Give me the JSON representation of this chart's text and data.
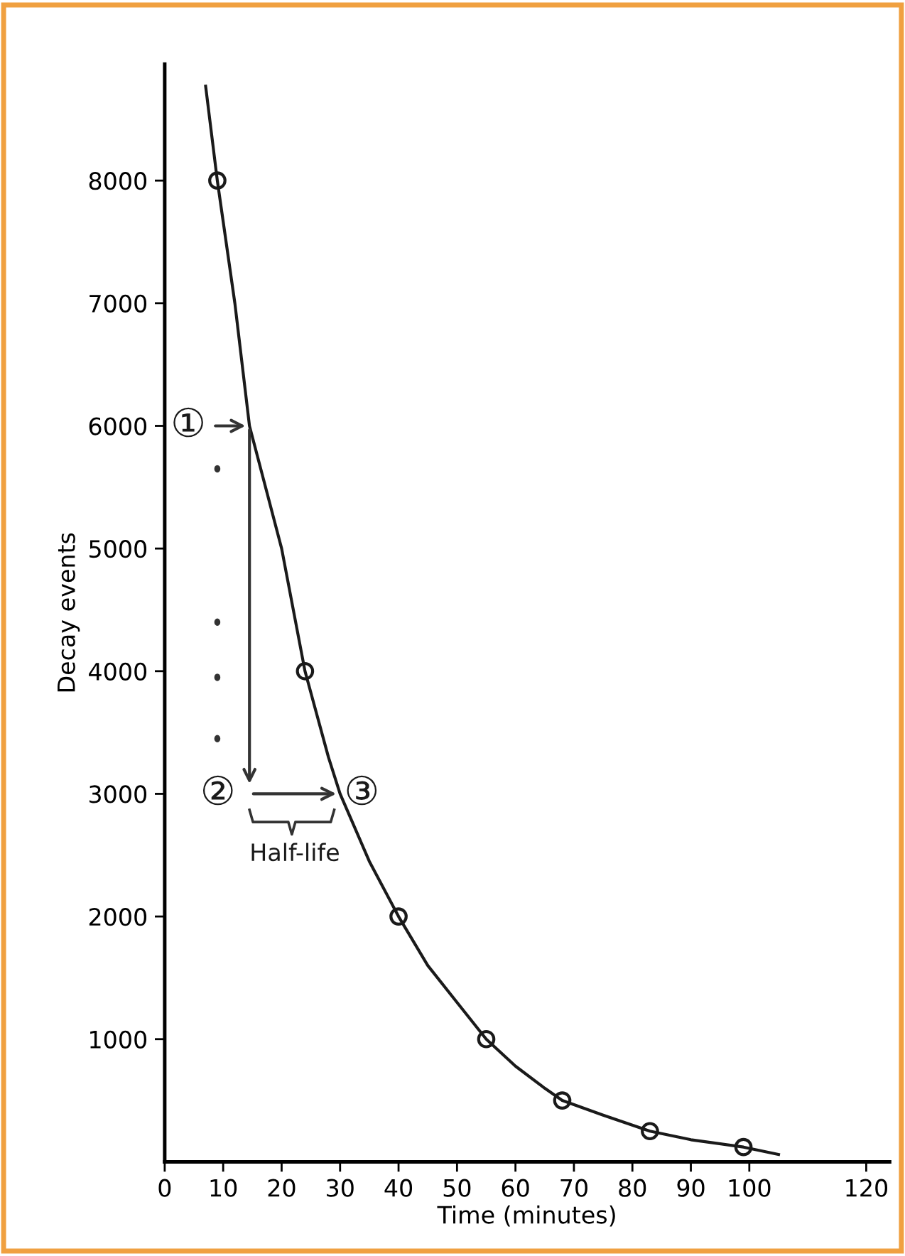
{
  "chart_data": {
    "type": "line",
    "xlabel": "Time (minutes)",
    "ylabel": "Decay events",
    "xlim": [
      0,
      124
    ],
    "ylim": [
      0,
      8950
    ],
    "xticks": [
      0,
      10,
      20,
      30,
      40,
      50,
      60,
      70,
      80,
      90,
      100,
      120
    ],
    "yticks": [
      1000,
      2000,
      3000,
      4000,
      5000,
      6000,
      7000,
      8000
    ],
    "grid": false,
    "legend": false,
    "series": [
      {
        "color": "#1a1a1a",
        "x": [
          7,
          9,
          12,
          14.5,
          20,
          24,
          28,
          30,
          35,
          40,
          45,
          50,
          55,
          60,
          65,
          68,
          75,
          83,
          90,
          99,
          105
        ],
        "values": [
          8770,
          8000,
          7000,
          6000,
          5000,
          4000,
          3300,
          3000,
          2450,
          2000,
          1600,
          1300,
          1000,
          780,
          600,
          500,
          380,
          250,
          180,
          120,
          60
        ]
      },
      {
        "type": "scatter",
        "color": "#1a1a1a",
        "marker": "circle",
        "x": [
          9,
          24,
          40,
          55,
          68,
          83,
          99
        ],
        "values": [
          8000,
          4000,
          2000,
          1000,
          500,
          250,
          120
        ]
      }
    ],
    "annotations": [
      {
        "text": "①",
        "x": 14.5,
        "y": 6000
      },
      "②",
      {
        "text": "③",
        "x": 30,
        "y": 3000
      },
      "Half-life"
    ]
  }
}
